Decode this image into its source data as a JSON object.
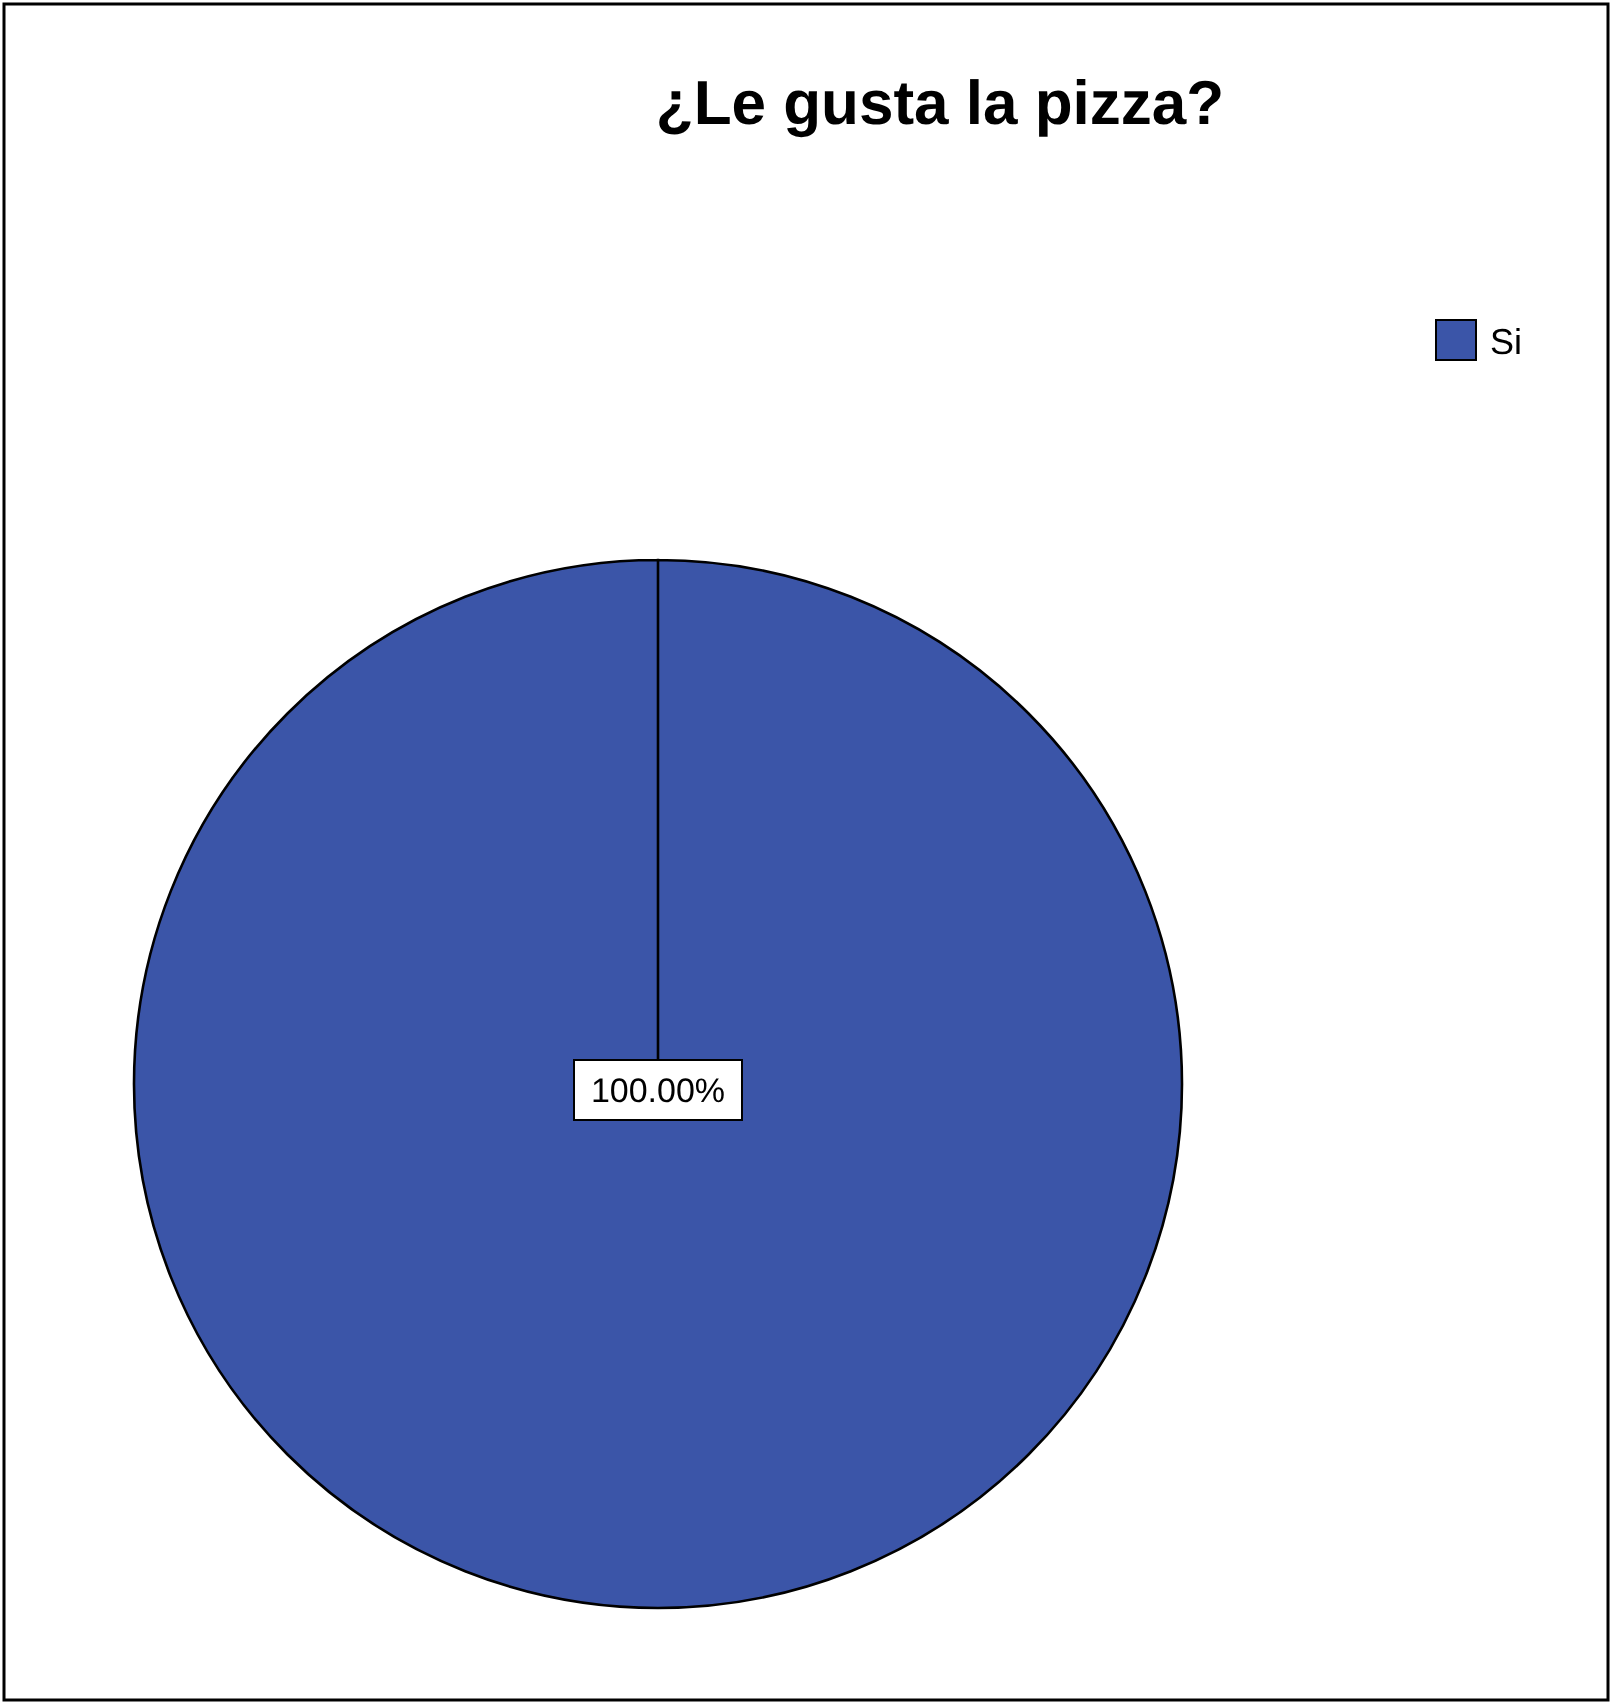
{
  "chart_data": {
    "type": "pie",
    "title": "¿Le gusta la pizza?",
    "categories": [
      "Si"
    ],
    "values": [
      100
    ],
    "colors": [
      "#3b55a8"
    ],
    "value_labels": [
      "100.00%"
    ],
    "legend": "top right"
  }
}
